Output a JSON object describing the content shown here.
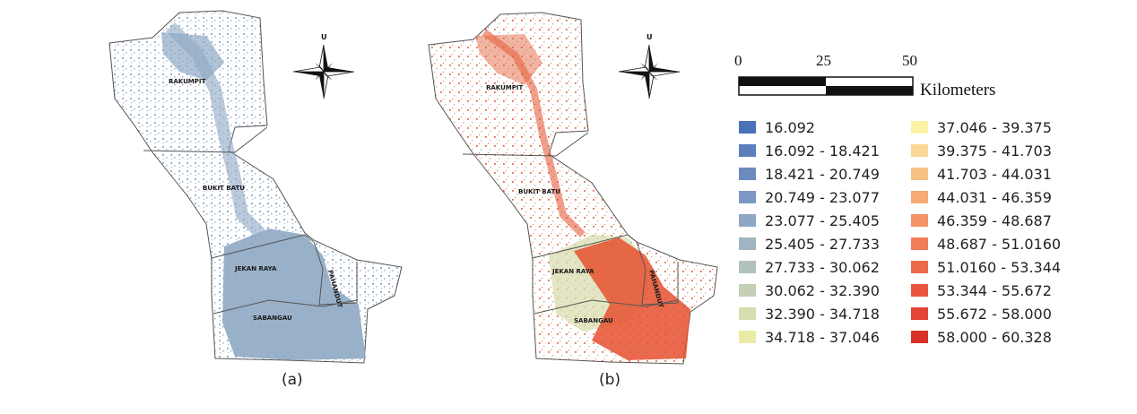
{
  "panels": [
    {
      "caption": "(a)",
      "regions": [
        "RAKUMPIT",
        "BUKIT BATU",
        "JEKAN RAYA",
        "PAHANDUT",
        "SABANGAU"
      ],
      "north_letter": "U"
    },
    {
      "caption": "(b)",
      "regions": [
        "RAKUMPIT",
        "BUKIT BATU",
        "JEKAN RAYA",
        "PAHANDUT",
        "SABANGAU"
      ],
      "north_letter": "U"
    }
  ],
  "scale_bar": {
    "ticks": [
      "0",
      "25",
      "50"
    ],
    "unit": "Kilometers"
  },
  "legend": {
    "left_column": [
      {
        "label": "16.092",
        "color": "#4a72b8"
      },
      {
        "label": "16.092 - 18.421",
        "color": "#5a7fbc"
      },
      {
        "label": "18.421 - 20.749",
        "color": "#6b8bbf"
      },
      {
        "label": "20.749 - 23.077",
        "color": "#7d98c3"
      },
      {
        "label": "23.077 - 25.405",
        "color": "#8ea7c4"
      },
      {
        "label": "25.405 - 27.733",
        "color": "#9fb5c2"
      },
      {
        "label": "27.733 - 30.062",
        "color": "#b0c2bd"
      },
      {
        "label": "30.062 -  32.390",
        "color": "#c3d0b6"
      },
      {
        "label": "32.390 - 34.718",
        "color": "#d6deaf"
      },
      {
        "label": "34.718 - 37.046",
        "color": "#eaeca6"
      }
    ],
    "right_column": [
      {
        "label": "37.046 - 39.375",
        "color": "#fbf2a6"
      },
      {
        "label": "39.375 - 41.703",
        "color": "#f9d796"
      },
      {
        "label": "41.703 - 44.031",
        "color": "#f7c284"
      },
      {
        "label": "44.031 - 46.359",
        "color": "#f5ab73"
      },
      {
        "label": "46.359 - 48.687",
        "color": "#f29466"
      },
      {
        "label": "48.687 - 51.0160",
        "color": "#ef7e58"
      },
      {
        "label": "51.0160 - 53.344",
        "color": "#ec6a4c"
      },
      {
        "label": "53.344 - 55.672",
        "color": "#e85640"
      },
      {
        "label": "55.672 - 58.000",
        "color": "#e44435"
      },
      {
        "label": "58.000 - 60.328",
        "color": "#d9302a"
      }
    ]
  },
  "colors": {
    "panel_a_fill": "#8fa8c4",
    "panel_b_fill_high": "#e5502f",
    "panel_b_fill_low": "#d8deb0",
    "boundary": "#555555"
  }
}
